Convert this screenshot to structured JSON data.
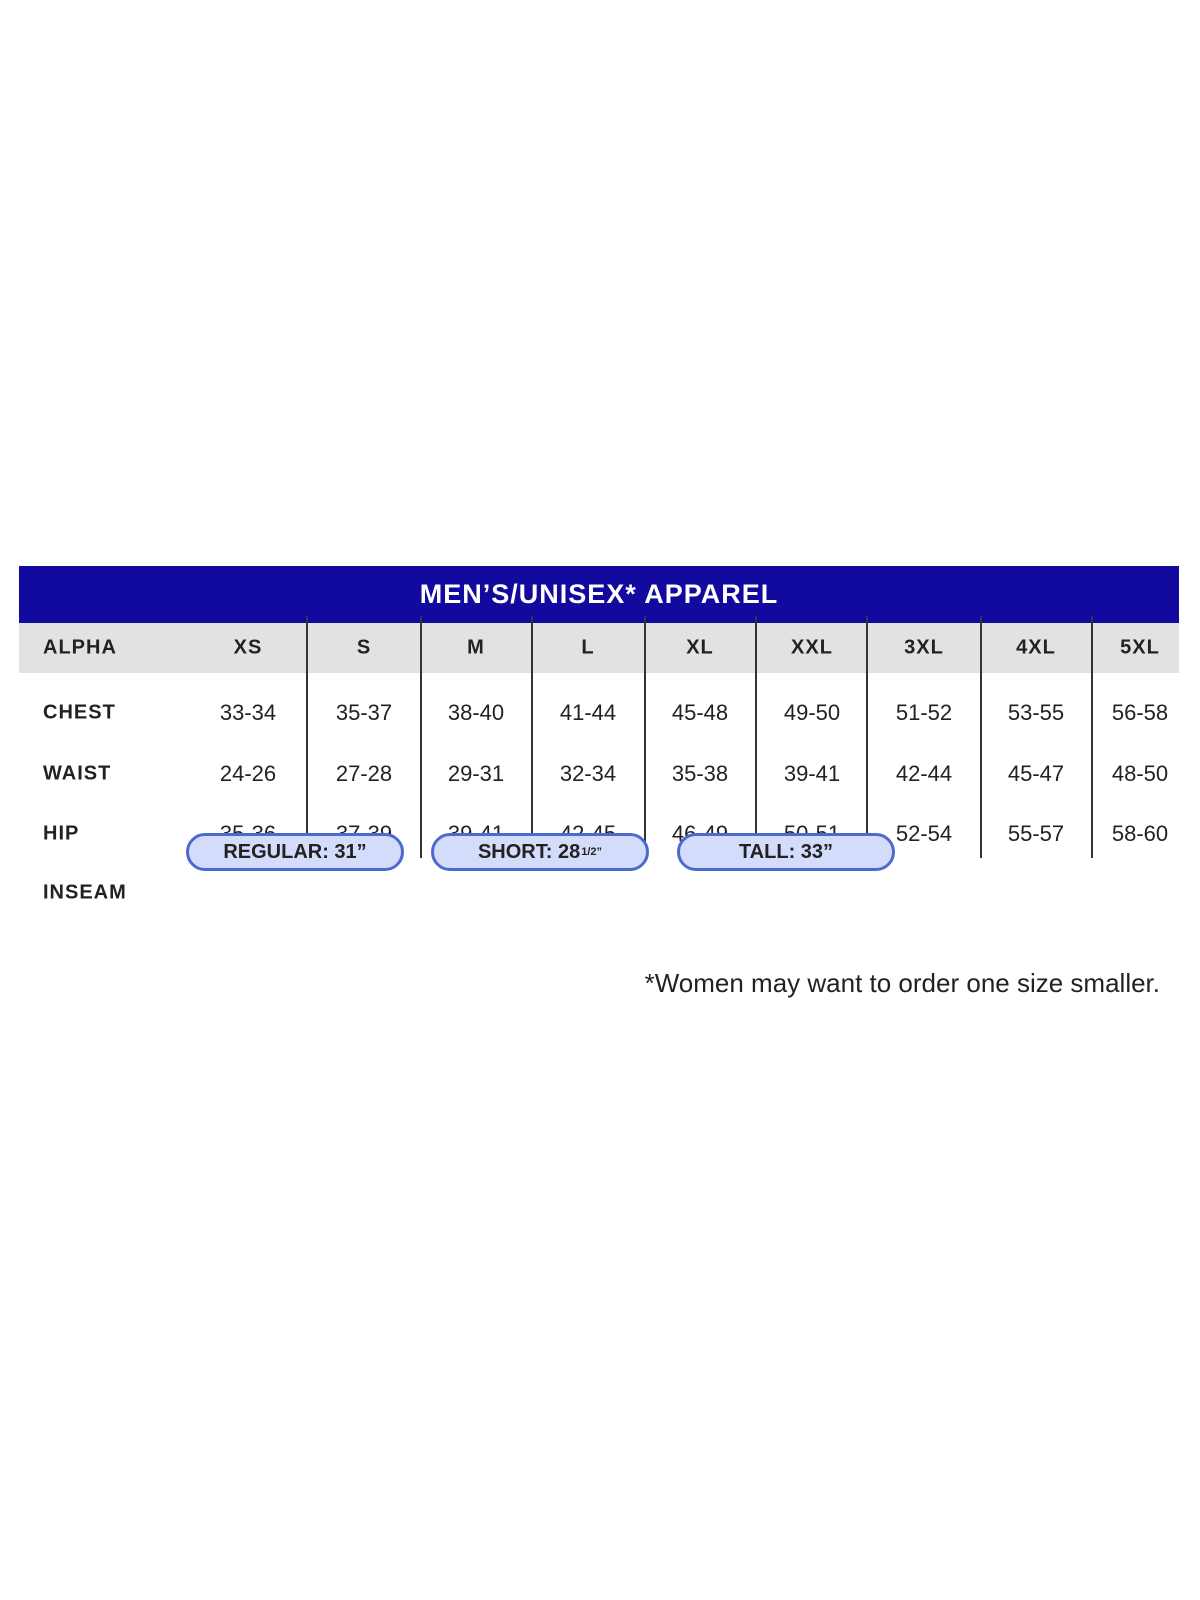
{
  "title": "MEN’S/UNISEX* APPAREL",
  "header": {
    "label": "ALPHA",
    "sizes": [
      "XS",
      "S",
      "M",
      "L",
      "XL",
      "XXL",
      "3XL",
      "4XL",
      "5XL"
    ]
  },
  "rows": [
    {
      "label": "CHEST",
      "values": [
        "33-34",
        "35-37",
        "38-40",
        "41-44",
        "45-48",
        "49-50",
        "51-52",
        "53-55",
        "56-58"
      ]
    },
    {
      "label": "WAIST",
      "values": [
        "24-26",
        "27-28",
        "29-31",
        "32-34",
        "35-38",
        "39-41",
        "42-44",
        "45-47",
        "48-50"
      ]
    },
    {
      "label": "HIP",
      "values": [
        "35-36",
        "37-39",
        "39-41",
        "42-45",
        "46-49",
        "50-51",
        "52-54",
        "55-57",
        "58-60"
      ]
    }
  ],
  "inseam": {
    "label": "INSEAM",
    "options": [
      {
        "text": "REGULAR: 31”",
        "sup": ""
      },
      {
        "text": "SHORT: 28",
        "sup": "1/2”"
      },
      {
        "text": "TALL: 33”",
        "sup": ""
      }
    ]
  },
  "footnote": "*Women may want to order one size smaller.",
  "colors": {
    "title_bg": "#12099f",
    "header_bg": "#e2e2e2",
    "pill_bg": "#d4dcfb",
    "pill_border": "#4b6ad0"
  }
}
